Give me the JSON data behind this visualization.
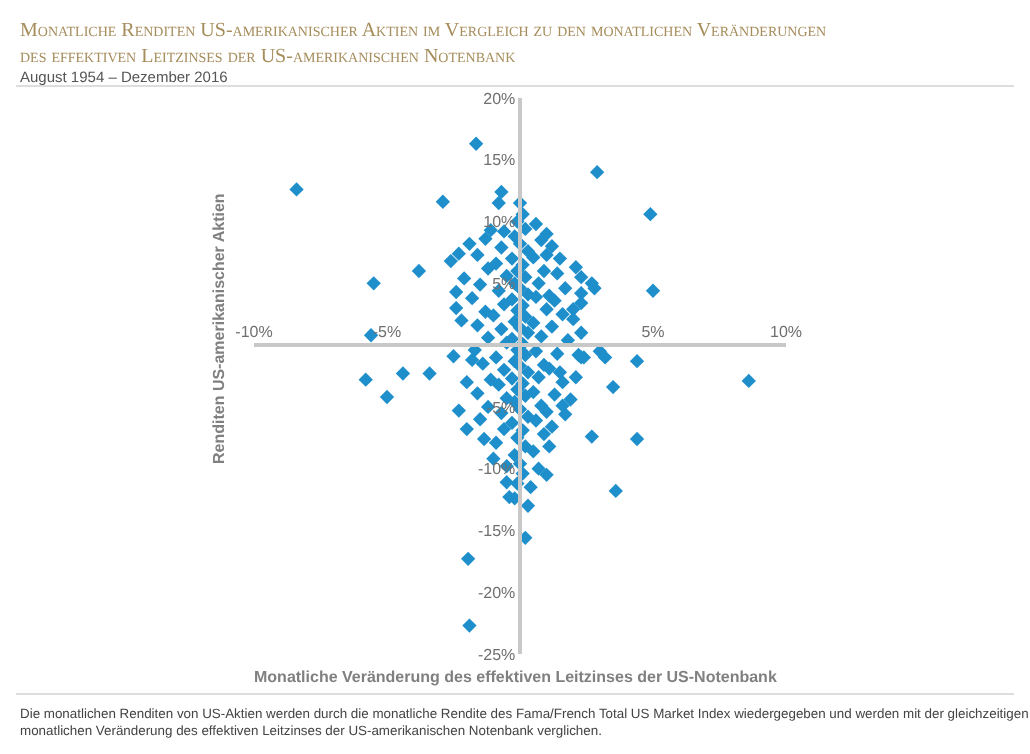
{
  "chart_data": {
    "type": "scatter",
    "title": "Monatliche Renditen US-amerikanischer Aktien im Vergleich zu den monatlichen Veränderungen des effektiven Leitzinses der US-amerikanischen Notenbank",
    "subtitle": "August 1954 – Dezember 2016",
    "xlabel": "Monatliche Veränderung des effektiven Leitzinses der US-Notenbank",
    "ylabel": "Renditen US-amerikanischer Aktien",
    "annotations": [
      "Die monatlichen Renditen von US-Aktien werden durch die monatliche Rendite des Fama/French Total US Market Index wiedergegeben und werden mit der gleichzeitigen monatlichen Veränderung des effektiven Leitzinses der US-amerikanischen Notenbank verglichen."
    ],
    "xlim": [
      -10,
      10
    ],
    "ylim": [
      -25,
      20
    ],
    "xticks": [
      {
        "value": -10,
        "label": "-10%"
      },
      {
        "value": -5,
        "label": "-5%"
      },
      {
        "value": 5,
        "label": "5%"
      },
      {
        "value": 10,
        "label": "10%"
      }
    ],
    "yticks": [
      {
        "value": -25,
        "label": "-25%"
      },
      {
        "value": -20,
        "label": "-20%"
      },
      {
        "value": -15,
        "label": "-15%"
      },
      {
        "value": -10,
        "label": "-10%"
      },
      {
        "value": -5,
        "label": "-5%"
      },
      {
        "value": 5,
        "label": "5%"
      },
      {
        "value": 10,
        "label": "10%"
      },
      {
        "value": 15,
        "label": "15%"
      },
      {
        "value": 20,
        "label": "20%"
      }
    ],
    "marker": "diamond",
    "series": [
      {
        "color": "#1f8fcb",
        "x": [
          -8.4,
          -1.65,
          2.9,
          -2.9,
          4.9,
          5.0,
          -5.5,
          -3.8,
          -5.6,
          -5.8,
          -5.0,
          -4.4,
          -3.4,
          8.6,
          3.5,
          4.4,
          3.6,
          -1.95,
          -1.9,
          0.2,
          2.7,
          2.3,
          2.7,
          2.8,
          2.3,
          2.3,
          2.0,
          2.3,
          2.4,
          3.0,
          3.2,
          4.4,
          1.0,
          1.0,
          -0.7,
          -0.8,
          -0.2,
          -0.4,
          -0.5,
          -1.0,
          -1.35,
          -2.0,
          -2.3,
          -1.5,
          0.4,
          1.0,
          1.1,
          1.2,
          1.7,
          1.9,
          1.6,
          0,
          0.1,
          -0.1,
          0.2,
          -0.2,
          0,
          0.3,
          -0.3,
          0.1,
          -0.1,
          0.2,
          -0.2,
          0,
          0.3,
          -0.3,
          0.1,
          -0.1,
          0.2,
          -0.2,
          0,
          0.3,
          -0.3,
          0.1,
          -0.1,
          0.2,
          -0.2,
          0,
          0.3,
          -0.3,
          0.1,
          -0.1,
          0.2,
          -0.2,
          0,
          0.3,
          -0.3,
          0.1,
          -0.1,
          0.2,
          -0.2,
          0,
          0.1,
          -0.1,
          0.3,
          0.6,
          -0.6,
          0.8,
          -0.7,
          0.5,
          -0.9,
          0.9,
          -0.5,
          0.7,
          -0.8,
          0.6,
          -0.6,
          1.0,
          -1.0,
          0.5,
          -0.7,
          0.8,
          -0.5,
          0.6,
          -0.9,
          0.9,
          -0.6,
          0.7,
          -0.8,
          0.5,
          -0.5,
          0.8,
          -0.7,
          0.6,
          -0.6,
          0.9,
          -0.9,
          0.5,
          -0.5,
          0.7,
          1.2,
          -1.3,
          1.5,
          -1.6,
          1.4,
          -1.2,
          1.7,
          -1.5,
          1.3,
          -1.8,
          1.6,
          -1.3,
          1.2,
          -1.6,
          1.8,
          -1.2,
          1.4,
          -1.7,
          1.1,
          -1.4,
          1.6,
          -1.1,
          1.3,
          -1.6,
          -1.2,
          1.5,
          -1.8,
          1.1,
          -1.1,
          1.0,
          -2.3,
          -2.6,
          2.1,
          -2.1,
          2.3,
          -2.4,
          2.0,
          -2.2,
          2.2,
          -2.5,
          -2.0,
          2.1,
          -2.4,
          -1.9
        ],
        "values": [
          12.6,
          16.3,
          14.0,
          11.6,
          10.6,
          4.4,
          5.0,
          6.0,
          0.8,
          -2.8,
          -4.2,
          -2.3,
          -2.3,
          -2.9,
          -3.4,
          -7.6,
          -11.8,
          -17.3,
          -22.7,
          -15.6,
          -7.4,
          5.5,
          5.0,
          4.6,
          3.4,
          1.0,
          2.9,
          -1.0,
          -1.0,
          -0.5,
          -1.0,
          -1.3,
          9.0,
          7.3,
          12.4,
          11.5,
          -12.4,
          -12.3,
          -11.1,
          -9.2,
          -7.6,
          -6.8,
          -5.3,
          -6.0,
          -11.5,
          -10.5,
          -8.2,
          -6.6,
          -5.6,
          -4.4,
          -4.9,
          11.5,
          10.6,
          10.0,
          9.4,
          8.8,
          8.2,
          7.6,
          7.0,
          6.5,
          6.0,
          5.5,
          5.0,
          4.6,
          4.1,
          3.7,
          3.2,
          2.8,
          2.3,
          1.9,
          1.4,
          1.0,
          0.5,
          0.1,
          -0.4,
          -0.8,
          -1.3,
          -1.7,
          -2.2,
          -2.7,
          -3.1,
          -3.6,
          -4.1,
          -4.6,
          -5.2,
          -5.8,
          -6.3,
          -6.9,
          -7.5,
          -8.2,
          -8.9,
          -9.6,
          -10.4,
          -11.2,
          -13.0,
          9.8,
          9.2,
          8.5,
          7.9,
          7.1,
          6.6,
          6.0,
          5.6,
          5.0,
          4.4,
          3.9,
          3.3,
          2.9,
          2.4,
          1.8,
          1.3,
          0.7,
          0.2,
          -0.5,
          -1.0,
          -1.6,
          -2.0,
          -2.6,
          -3.2,
          -3.8,
          -4.3,
          -4.9,
          -5.5,
          -6.1,
          -6.8,
          -7.2,
          -7.9,
          -8.6,
          -9.8,
          -10.0,
          8.0,
          8.6,
          7.0,
          7.3,
          5.8,
          6.2,
          4.6,
          4.9,
          3.6,
          3.8,
          2.5,
          2.7,
          1.5,
          1.6,
          0.4,
          0.6,
          -0.7,
          -0.4,
          -1.9,
          -1.5,
          -3.0,
          -2.8,
          -4.0,
          -3.9,
          -5.0,
          -2.2,
          -1.2,
          4.0,
          9.3,
          -5.4,
          7.4,
          6.8,
          6.3,
          5.4,
          4.2,
          4.3,
          2.1,
          2.0,
          -0.8,
          -0.9,
          -3.0,
          -2.6,
          3.0,
          8.2
        ]
      }
    ]
  }
}
